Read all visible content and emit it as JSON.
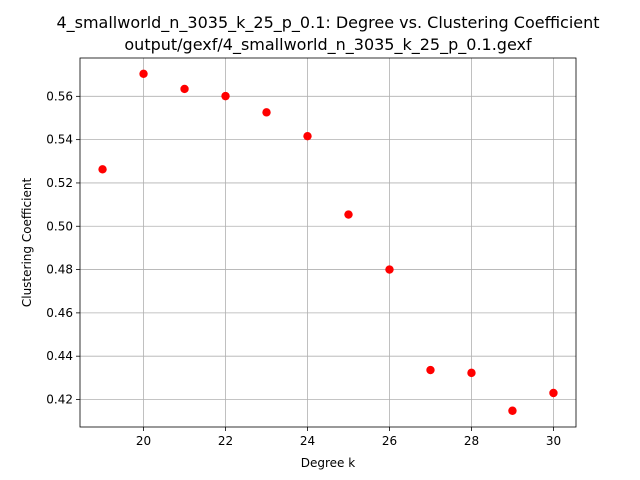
{
  "chart_data": {
    "type": "scatter",
    "title": "4_smallworld_n_3035_k_25_p_0.1: Degree vs. Clustering Coefficient",
    "subtitle": "output/gexf/4_smallworld_n_3035_k_25_p_0.1.gexf",
    "xlabel": "Degree k",
    "ylabel": "Clustering Coefficient",
    "xlim": [
      18.45,
      30.55
    ],
    "ylim": [
      0.4073,
      0.5777
    ],
    "xticks": [
      20,
      22,
      24,
      26,
      28,
      30
    ],
    "yticks": [
      0.42,
      0.44,
      0.46,
      0.48,
      0.5,
      0.52,
      0.54,
      0.56
    ],
    "grid": true,
    "marker_color": "#ff0000",
    "x": [
      19,
      20,
      21,
      22,
      23,
      24,
      25,
      26,
      27,
      28,
      29,
      30
    ],
    "y": [
      0.5263,
      0.5704,
      0.5634,
      0.5601,
      0.5526,
      0.5416,
      0.5054,
      0.48,
      0.4336,
      0.4323,
      0.4148,
      0.423
    ]
  }
}
